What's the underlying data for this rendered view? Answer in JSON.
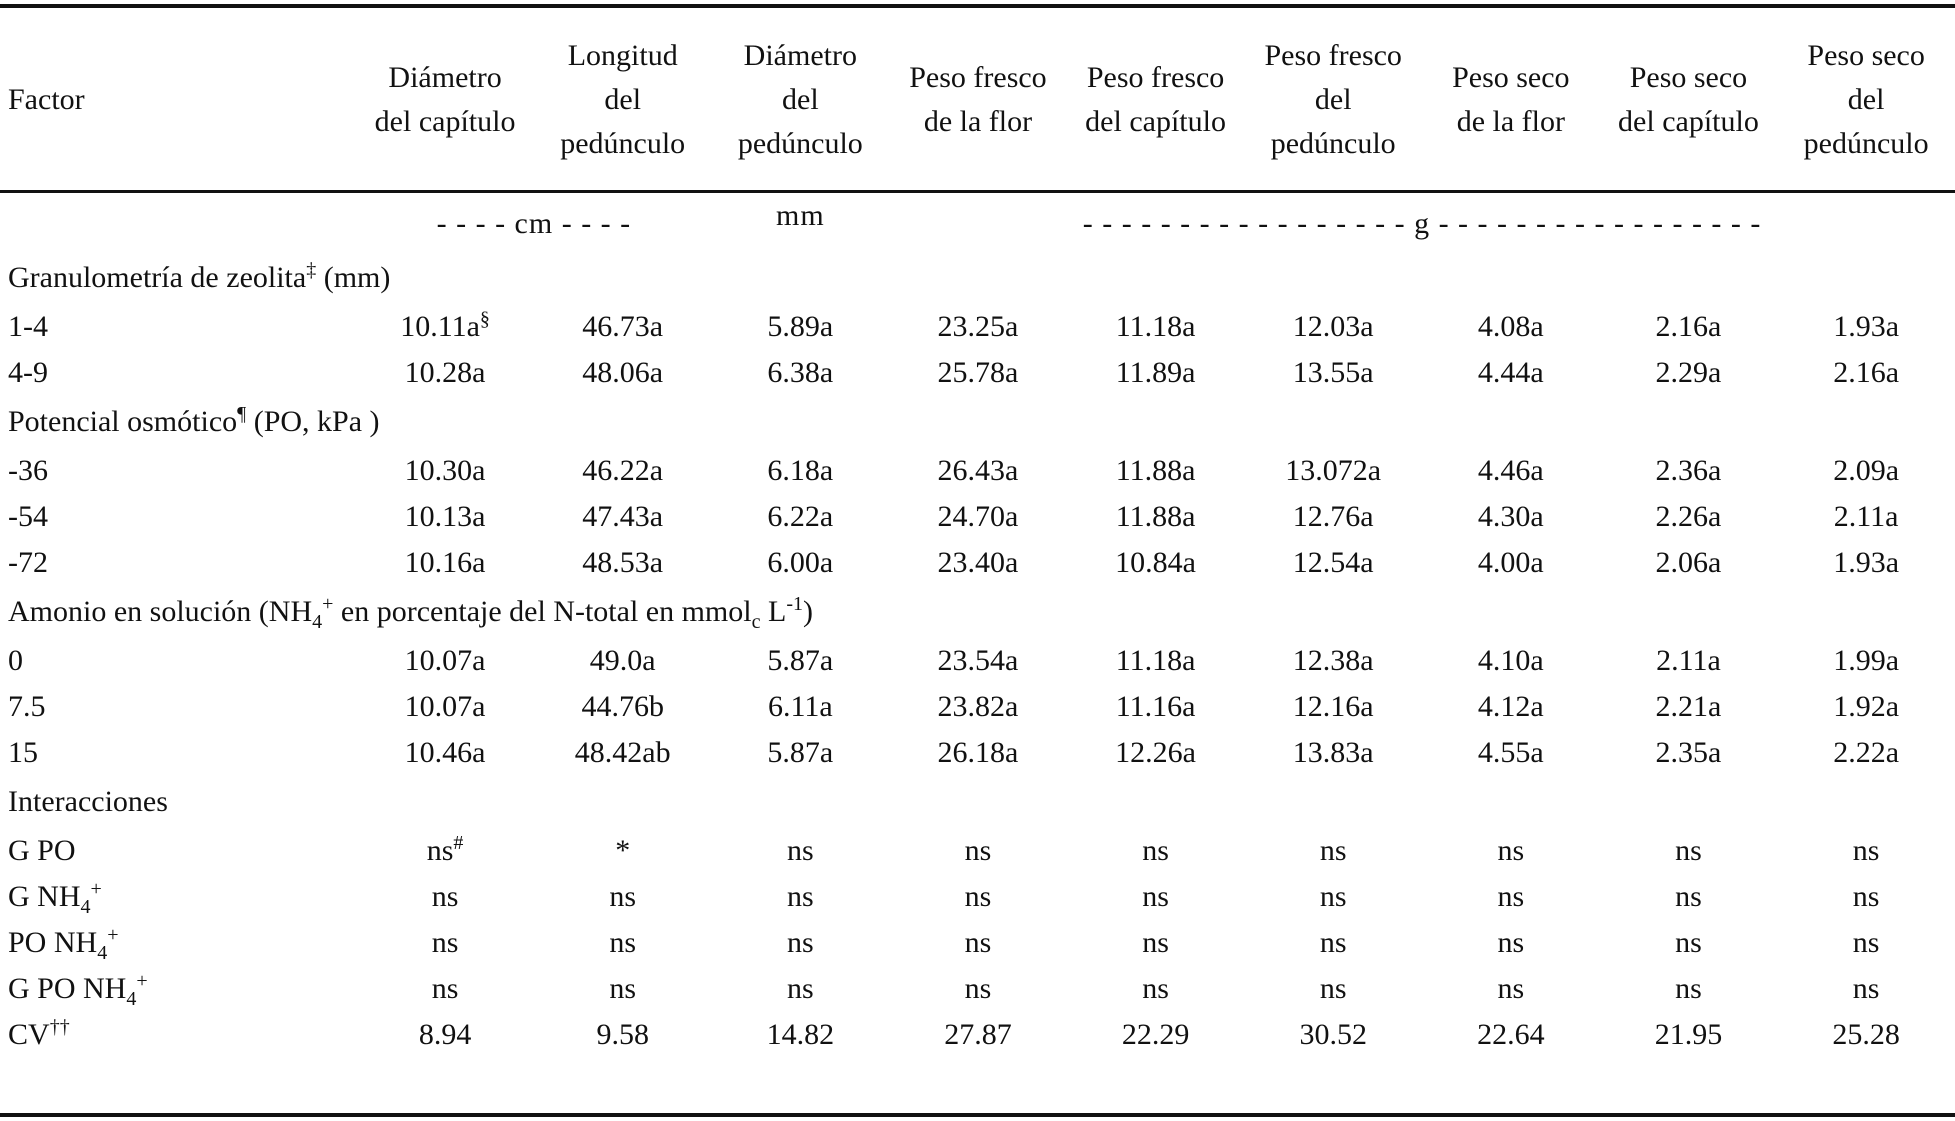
{
  "header": {
    "factor": "Factor",
    "columns": [
      [
        "Diámetro",
        "del capítulo"
      ],
      [
        "Longitud",
        "del",
        "pedúnculo"
      ],
      [
        "Diámetro",
        "del",
        "pedúnculo"
      ],
      [
        "Peso fresco",
        "de la flor"
      ],
      [
        "Peso fresco",
        "del capítulo"
      ],
      [
        "Peso fresco",
        "del",
        "pedúnculo"
      ],
      [
        "Peso seco",
        "de la flor"
      ],
      [
        "Peso seco",
        "del capítulo"
      ],
      [
        "Peso seco",
        "del",
        "pedúnculo"
      ]
    ]
  },
  "units": {
    "cm": "- - - - cm - - - -",
    "mm": "mm",
    "g": "- - - - - - - - - - - - - - - - - g - - - - - - - - - - - - - - - - -"
  },
  "groups": {
    "granulometria": {
      "label": "Granulometría de zeolita",
      "mark": "‡",
      "suffix": " (mm)",
      "rows": [
        {
          "label": "1-4",
          "values": [
            "10.11a",
            "46.73a",
            "5.89a",
            "23.25a",
            "11.18a",
            "12.03a",
            "4.08a",
            "2.16a",
            "1.93a"
          ],
          "first_mark": "§"
        },
        {
          "label": "4-9",
          "values": [
            "10.28a",
            "48.06a",
            "6.38a",
            "25.78a",
            "11.89a",
            "13.55a",
            "4.44a",
            "2.29a",
            "2.16a"
          ]
        }
      ]
    },
    "potencial": {
      "label": "Potencial osmótico",
      "mark": "¶",
      "suffix": " (PO, kPa )",
      "rows": [
        {
          "label": "-36",
          "values": [
            "10.30a",
            "46.22a",
            "6.18a",
            "26.43a",
            "11.88a",
            "13.072a",
            "4.46a",
            "2.36a",
            "2.09a"
          ]
        },
        {
          "label": "-54",
          "values": [
            "10.13a",
            "47.43a",
            "6.22a",
            "24.70a",
            "11.88a",
            "12.76a",
            "4.30a",
            "2.26a",
            "2.11a"
          ]
        },
        {
          "label": "-72",
          "values": [
            "10.16a",
            "48.53a",
            "6.00a",
            "23.40a",
            "10.84a",
            "12.54a",
            "4.00a",
            "2.06a",
            "1.93a"
          ]
        }
      ]
    },
    "amonio": {
      "label_a": "Amonio en solución (NH",
      "sub_4": "4",
      "sup_plus": "+",
      "label_b": " en porcentaje del N-total en mmol",
      "sub_c": "c",
      "label_c": " L",
      "sup_minus1": "-1",
      "label_d": ")",
      "rows": [
        {
          "label": "0",
          "values": [
            "10.07a",
            "49.0a",
            "5.87a",
            "23.54a",
            "11.18a",
            "12.38a",
            "4.10a",
            "2.11a",
            "1.99a"
          ]
        },
        {
          "label": "7.5",
          "values": [
            "10.07a",
            "44.76b",
            "6.11a",
            "23.82a",
            "11.16a",
            "12.16a",
            "4.12a",
            "2.21a",
            "1.92a"
          ]
        },
        {
          "label": "15",
          "values": [
            "10.46a",
            "48.42ab",
            "5.87a",
            "26.18a",
            "12.26a",
            "13.83a",
            "4.55a",
            "2.35a",
            "2.22a"
          ]
        }
      ]
    }
  },
  "interacciones": {
    "label": "Interacciones",
    "rows": [
      {
        "label_main": "G PO",
        "label_sub": "",
        "label_sup": "",
        "values": [
          "ns",
          "*",
          "ns",
          "ns",
          "ns",
          "ns",
          "ns",
          "ns",
          "ns"
        ],
        "first_mark": "#"
      },
      {
        "label_main": "G NH",
        "label_sub": "4",
        "label_sup": "+",
        "values": [
          "ns",
          "ns",
          "ns",
          "ns",
          "ns",
          "ns",
          "ns",
          "ns",
          "ns"
        ]
      },
      {
        "label_main": "PO NH",
        "label_sub": "4",
        "label_sup": "+",
        "values": [
          "ns",
          "ns",
          "ns",
          "ns",
          "ns",
          "ns",
          "ns",
          "ns",
          "ns"
        ]
      },
      {
        "label_main": "G PO NH",
        "label_sub": "4",
        "label_sup": "+",
        "values": [
          "ns",
          "ns",
          "ns",
          "ns",
          "ns",
          "ns",
          "ns",
          "ns",
          "ns"
        ]
      }
    ]
  },
  "cv": {
    "label": "CV",
    "mark": "††",
    "values": [
      "8.94",
      "9.58",
      "14.82",
      "27.87",
      "22.29",
      "30.52",
      "22.64",
      "21.95",
      "25.28"
    ]
  }
}
